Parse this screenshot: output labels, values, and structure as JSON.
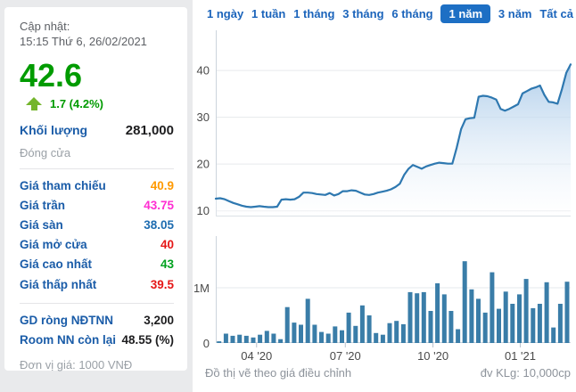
{
  "sidebar": {
    "updated_label": "Cập nhật:",
    "updated_time": "15:15 Thứ 6, 26/02/2021",
    "price": "42.6",
    "price_color": "#009b00",
    "change": "1.7 (4.2%)",
    "volume_label": "Khối lượng",
    "volume_value": "281,000",
    "close_label": "Đóng cửa",
    "rows": [
      {
        "label": "Giá tham chiếu",
        "value": "40.9",
        "color": "#f90"
      },
      {
        "label": "Giá trần",
        "value": "43.75",
        "color": "#ff2ed2"
      },
      {
        "label": "Giá sàn",
        "value": "38.05",
        "color": "#1e6cb0"
      },
      {
        "label": "Giá mở cửa",
        "value": "40",
        "color": "#e51717"
      },
      {
        "label": "Giá cao nhất",
        "value": "43",
        "color": "#00a21f"
      },
      {
        "label": "Giá thấp nhất",
        "value": "39.5",
        "color": "#e51717"
      }
    ],
    "rows2": [
      {
        "label": "GD ròng NĐTNN",
        "value": "3,200",
        "color": "#1d1d1f"
      },
      {
        "label": "Room NN còn lại",
        "value": "48.55 (%)",
        "color": "#1d1d1f"
      }
    ],
    "unit_note": "Đơn vị giá: 1000 VNĐ"
  },
  "tabs": {
    "items": [
      "1 ngày",
      "1 tuần",
      "1 tháng",
      "3 tháng",
      "6 tháng",
      "1 năm",
      "3 năm",
      "Tất cả"
    ],
    "active": "1 năm",
    "active_bg": "#1d6fc4",
    "inactive_color": "#1b64bb"
  },
  "chart_data": [
    {
      "type": "area",
      "ylabel": "Giá (1000 VND)",
      "ylim": [
        8.8,
        48.6
      ],
      "yticks": [
        {
          "v": 10,
          "label": "10"
        },
        {
          "v": 20,
          "label": "20"
        },
        {
          "v": 30,
          "label": "30"
        },
        {
          "v": 40,
          "label": "40"
        }
      ],
      "values": [
        12.6,
        12.7,
        12.5,
        12.1,
        11.7,
        11.4,
        11.1,
        10.9,
        10.8,
        10.9,
        11.0,
        10.9,
        10.8,
        10.8,
        10.9,
        12.4,
        12.5,
        12.4,
        12.5,
        13.0,
        13.9,
        13.9,
        13.8,
        13.6,
        13.5,
        13.4,
        13.8,
        13.3,
        13.6,
        14.2,
        14.2,
        14.4,
        14.3,
        13.9,
        13.5,
        13.4,
        13.6,
        13.9,
        14.1,
        14.3,
        14.6,
        15.1,
        15.8,
        17.7,
        19.0,
        19.8,
        19.4,
        19.0,
        19.5,
        19.8,
        20.1,
        20.3,
        20.2,
        20.1,
        20.1,
        23.5,
        27.5,
        29.6,
        29.8,
        29.9,
        34.4,
        34.6,
        34.5,
        34.2,
        33.8,
        31.8,
        31.4,
        31.8,
        32.3,
        32.8,
        35.1,
        35.6,
        36.1,
        36.4,
        36.8,
        34.8,
        33.3,
        33.2,
        32.9,
        36.0,
        39.5,
        41.3
      ],
      "line_color": "#2e78b0",
      "fill_top": "#a6c8e8",
      "fill_bottom": "#ffffff",
      "grid_color": "#e6e9ec",
      "axis_color": "#ccd4dc",
      "tick_text_color": "#4a4a4a",
      "grid": true
    },
    {
      "type": "bar",
      "ylabel": "KL (10,000cp)",
      "ylim": [
        0,
        1.935
      ],
      "yticks": [
        {
          "v": 0,
          "label": "0"
        },
        {
          "v": 1,
          "label": "1M"
        }
      ],
      "xticks": [
        {
          "label": "04 '20",
          "pos": 0.115
        },
        {
          "label": "07 '20",
          "pos": 0.365
        },
        {
          "label": "10 '20",
          "pos": 0.612
        },
        {
          "label": "01 '21",
          "pos": 0.858
        }
      ],
      "values": [
        0.03,
        0.17,
        0.13,
        0.15,
        0.13,
        0.1,
        0.15,
        0.22,
        0.17,
        0.07,
        0.65,
        0.37,
        0.33,
        0.8,
        0.33,
        0.2,
        0.17,
        0.3,
        0.23,
        0.55,
        0.31,
        0.68,
        0.5,
        0.18,
        0.15,
        0.36,
        0.4,
        0.34,
        0.92,
        0.9,
        0.92,
        0.58,
        1.08,
        0.88,
        0.58,
        0.25,
        1.48,
        0.97,
        0.8,
        0.55,
        1.28,
        0.62,
        0.93,
        0.71,
        0.88,
        1.16,
        0.63,
        0.71,
        1.1,
        0.28,
        0.71,
        1.11
      ],
      "bar_color": "#3a7da8",
      "grid_color": "#e6e9ec",
      "axis_color": "#ccd4dc",
      "tick_color": "#b9c2cc",
      "tick_text_color": "#4a4a4a",
      "grid": true
    }
  ],
  "footer": {
    "left": "Đồ thị vẽ theo giá điều chỉnh",
    "right": "đv KLg: 10,000cp"
  }
}
